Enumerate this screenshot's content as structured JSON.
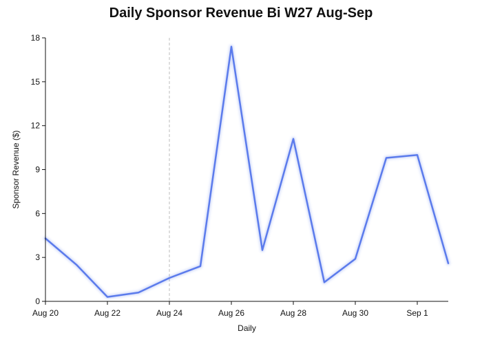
{
  "chart_data": {
    "type": "line",
    "title": "Daily Sponsor Revenue Bi W27 Aug-Sep",
    "xlabel": "Daily",
    "ylabel": "Sponsor Revenue ($)",
    "x": [
      "Aug 20",
      "Aug 21",
      "Aug 22",
      "Aug 23",
      "Aug 24",
      "Aug 25",
      "Aug 26",
      "Aug 27",
      "Aug 28",
      "Aug 29",
      "Aug 30",
      "Aug 31",
      "Sep 1",
      "Sep 2"
    ],
    "x_tick_labels": [
      "Aug 20",
      "Aug 22",
      "Aug 24",
      "Aug 26",
      "Aug 28",
      "Aug 30",
      "Sep 1"
    ],
    "series": [
      {
        "values": [
          4.3,
          2.5,
          0.3,
          0.6,
          1.6,
          2.4,
          17.4,
          3.5,
          11.1,
          1.3,
          2.9,
          9.8,
          10.0,
          2.6
        ]
      }
    ],
    "ylim": [
      0,
      18
    ],
    "y_ticks": [
      0,
      3,
      6,
      9,
      12,
      15,
      18
    ],
    "xlim": [
      "Aug 20",
      "Sep 2"
    ],
    "annotations": [
      {
        "type": "vertical-dashed-line",
        "x": "Aug 24"
      }
    ],
    "grid": false,
    "line_color": "#5b7bec",
    "marker_line_color": "#bbbbbb",
    "axis_color": "#111111"
  }
}
